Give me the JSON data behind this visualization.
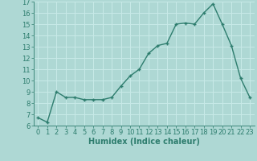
{
  "x": [
    0,
    1,
    2,
    3,
    4,
    5,
    6,
    7,
    8,
    9,
    10,
    11,
    12,
    13,
    14,
    15,
    16,
    17,
    18,
    19,
    20,
    21,
    22,
    23
  ],
  "y": [
    6.7,
    6.3,
    9.0,
    8.5,
    8.5,
    8.3,
    8.3,
    8.3,
    8.5,
    9.5,
    10.4,
    11.0,
    12.4,
    13.1,
    13.3,
    15.0,
    15.1,
    15.0,
    16.0,
    16.8,
    15.0,
    13.1,
    10.2,
    8.5
  ],
  "line_color": "#2e7d6e",
  "marker": "+",
  "marker_size": 3,
  "marker_linewidth": 1.0,
  "line_width": 1.0,
  "background_color": "#aed8d4",
  "grid_color": "#c8eae8",
  "xlabel": "Humidex (Indice chaleur)",
  "xlabel_fontsize": 7,
  "xlabel_fontweight": "bold",
  "tick_fontsize": 6,
  "ylim": [
    6,
    17
  ],
  "xlim": [
    -0.5,
    23.5
  ],
  "yticks": [
    6,
    7,
    8,
    9,
    10,
    11,
    12,
    13,
    14,
    15,
    16,
    17
  ],
  "xticks": [
    0,
    1,
    2,
    3,
    4,
    5,
    6,
    7,
    8,
    9,
    10,
    11,
    12,
    13,
    14,
    15,
    16,
    17,
    18,
    19,
    20,
    21,
    22,
    23
  ]
}
